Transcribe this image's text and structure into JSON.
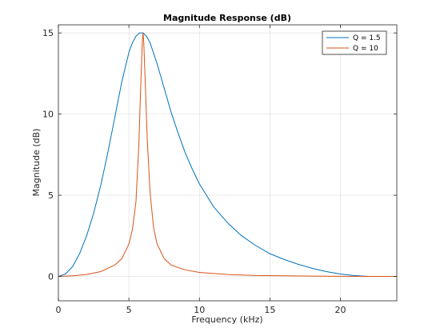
{
  "chart_data": {
    "type": "line",
    "title": "Magnitude Response (dB)",
    "xlabel": "Frequency (kHz)",
    "ylabel": "Magnitude (dB)",
    "xlim": [
      0,
      24
    ],
    "ylim": [
      -1.5,
      15.5
    ],
    "xticks": [
      0,
      5,
      10,
      15,
      20
    ],
    "yticks": [
      0,
      5,
      10,
      15
    ],
    "xtick_labels": [
      "0",
      "5",
      "10",
      "15",
      "20"
    ],
    "ytick_labels": [
      "0",
      "5",
      "10",
      "15"
    ],
    "grid": true,
    "legend_position": "top-right",
    "series": [
      {
        "name": "Q = 1.5",
        "color": "#0072BD",
        "x": [
          0,
          0.5,
          1,
          1.5,
          2,
          2.5,
          3,
          3.5,
          4,
          4.5,
          5,
          5.25,
          5.5,
          5.75,
          6,
          6.25,
          6.5,
          7,
          7.5,
          8,
          8.5,
          9,
          9.5,
          10,
          11,
          12,
          13,
          14,
          15,
          16,
          17,
          18,
          19,
          20,
          21,
          22,
          23,
          24
        ],
        "values": [
          0,
          0.15,
          0.6,
          1.4,
          2.5,
          3.9,
          5.6,
          7.6,
          9.8,
          12.0,
          13.8,
          14.4,
          14.8,
          15.0,
          15.0,
          14.8,
          14.4,
          13.1,
          11.6,
          10.1,
          8.8,
          7.6,
          6.6,
          5.7,
          4.3,
          3.3,
          2.5,
          1.9,
          1.4,
          1.05,
          0.75,
          0.5,
          0.3,
          0.15,
          0.05,
          0,
          0,
          0
        ]
      },
      {
        "name": "Q = 10",
        "color": "#D95319",
        "x": [
          0,
          1,
          2,
          3,
          4,
          4.5,
          5,
          5.25,
          5.5,
          5.7,
          5.85,
          5.95,
          6,
          6.05,
          6.15,
          6.3,
          6.5,
          6.75,
          7,
          7.5,
          8,
          9,
          10,
          12,
          14,
          16,
          18,
          20,
          22,
          24
        ],
        "values": [
          0,
          0.04,
          0.12,
          0.3,
          0.7,
          1.1,
          2.0,
          2.9,
          4.6,
          8.0,
          12.0,
          14.4,
          15.0,
          14.5,
          12.2,
          8.5,
          5.2,
          3.0,
          2.0,
          1.1,
          0.7,
          0.4,
          0.25,
          0.12,
          0.06,
          0.04,
          0.02,
          0.01,
          0,
          0
        ]
      }
    ]
  }
}
